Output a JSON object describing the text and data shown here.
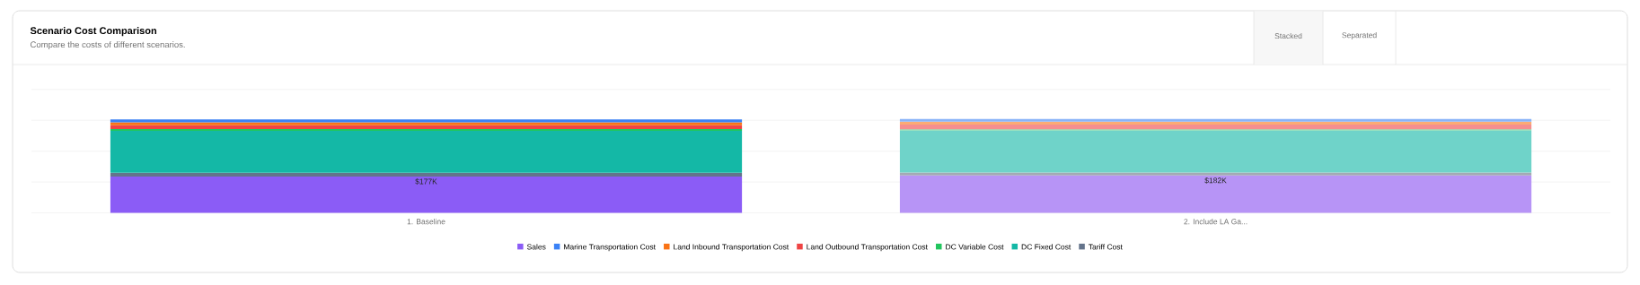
{
  "chart_data": {
    "type": "bar",
    "title": "Scenario Cost Comparison",
    "subtitle": "Compare the costs of different scenarios.",
    "annotations": [
      "Stacked",
      "Separated"
    ],
    "categories": [
      "1. Baseline",
      "2. Include LA Ga..."
    ],
    "stacked": true,
    "grid": "y",
    "legend": "bottom",
    "tick_labels": "x",
    "ylim": [
      0,
      600
    ],
    "yticks": [
      {
        "value": 0,
        "label": null
      },
      {
        "value": 150,
        "label": null
      },
      {
        "value": 300,
        "label": null
      },
      {
        "value": 450,
        "label": null
      },
      {
        "value": 600,
        "label": null
      }
    ],
    "series": [
      {
        "name": "Sales",
        "colors": [
          "#8b5cf6",
          "#b794f6"
        ],
        "values": [
          177,
          182
        ],
        "value_labels": [
          "$177K",
          "$182K"
        ]
      },
      {
        "name": "Tariff Cost",
        "colors": [
          "#64748b",
          "#a3a9b4"
        ],
        "values": [
          18,
          14
        ]
      },
      {
        "name": "DC Fixed Cost",
        "colors": [
          "#14b8a6",
          "#6fd3c9"
        ],
        "values": [
          204,
          205
        ]
      },
      {
        "name": "DC Variable Cost",
        "colors": [
          "#22c55e",
          "#7ad99c"
        ],
        "values": [
          9,
          5
        ]
      },
      {
        "name": "Land Outbound Transportation Cost",
        "colors": [
          "#ef4444",
          "#f58f8f"
        ],
        "values": [
          18,
          23
        ]
      },
      {
        "name": "Land Inbound Transportation Cost",
        "colors": [
          "#f97316",
          "#fbab74"
        ],
        "values": [
          14,
          14
        ]
      },
      {
        "name": "Marine Transportation Cost",
        "colors": [
          "#3b82f6",
          "#8ab4f8"
        ],
        "values": [
          14,
          14
        ]
      }
    ]
  }
}
